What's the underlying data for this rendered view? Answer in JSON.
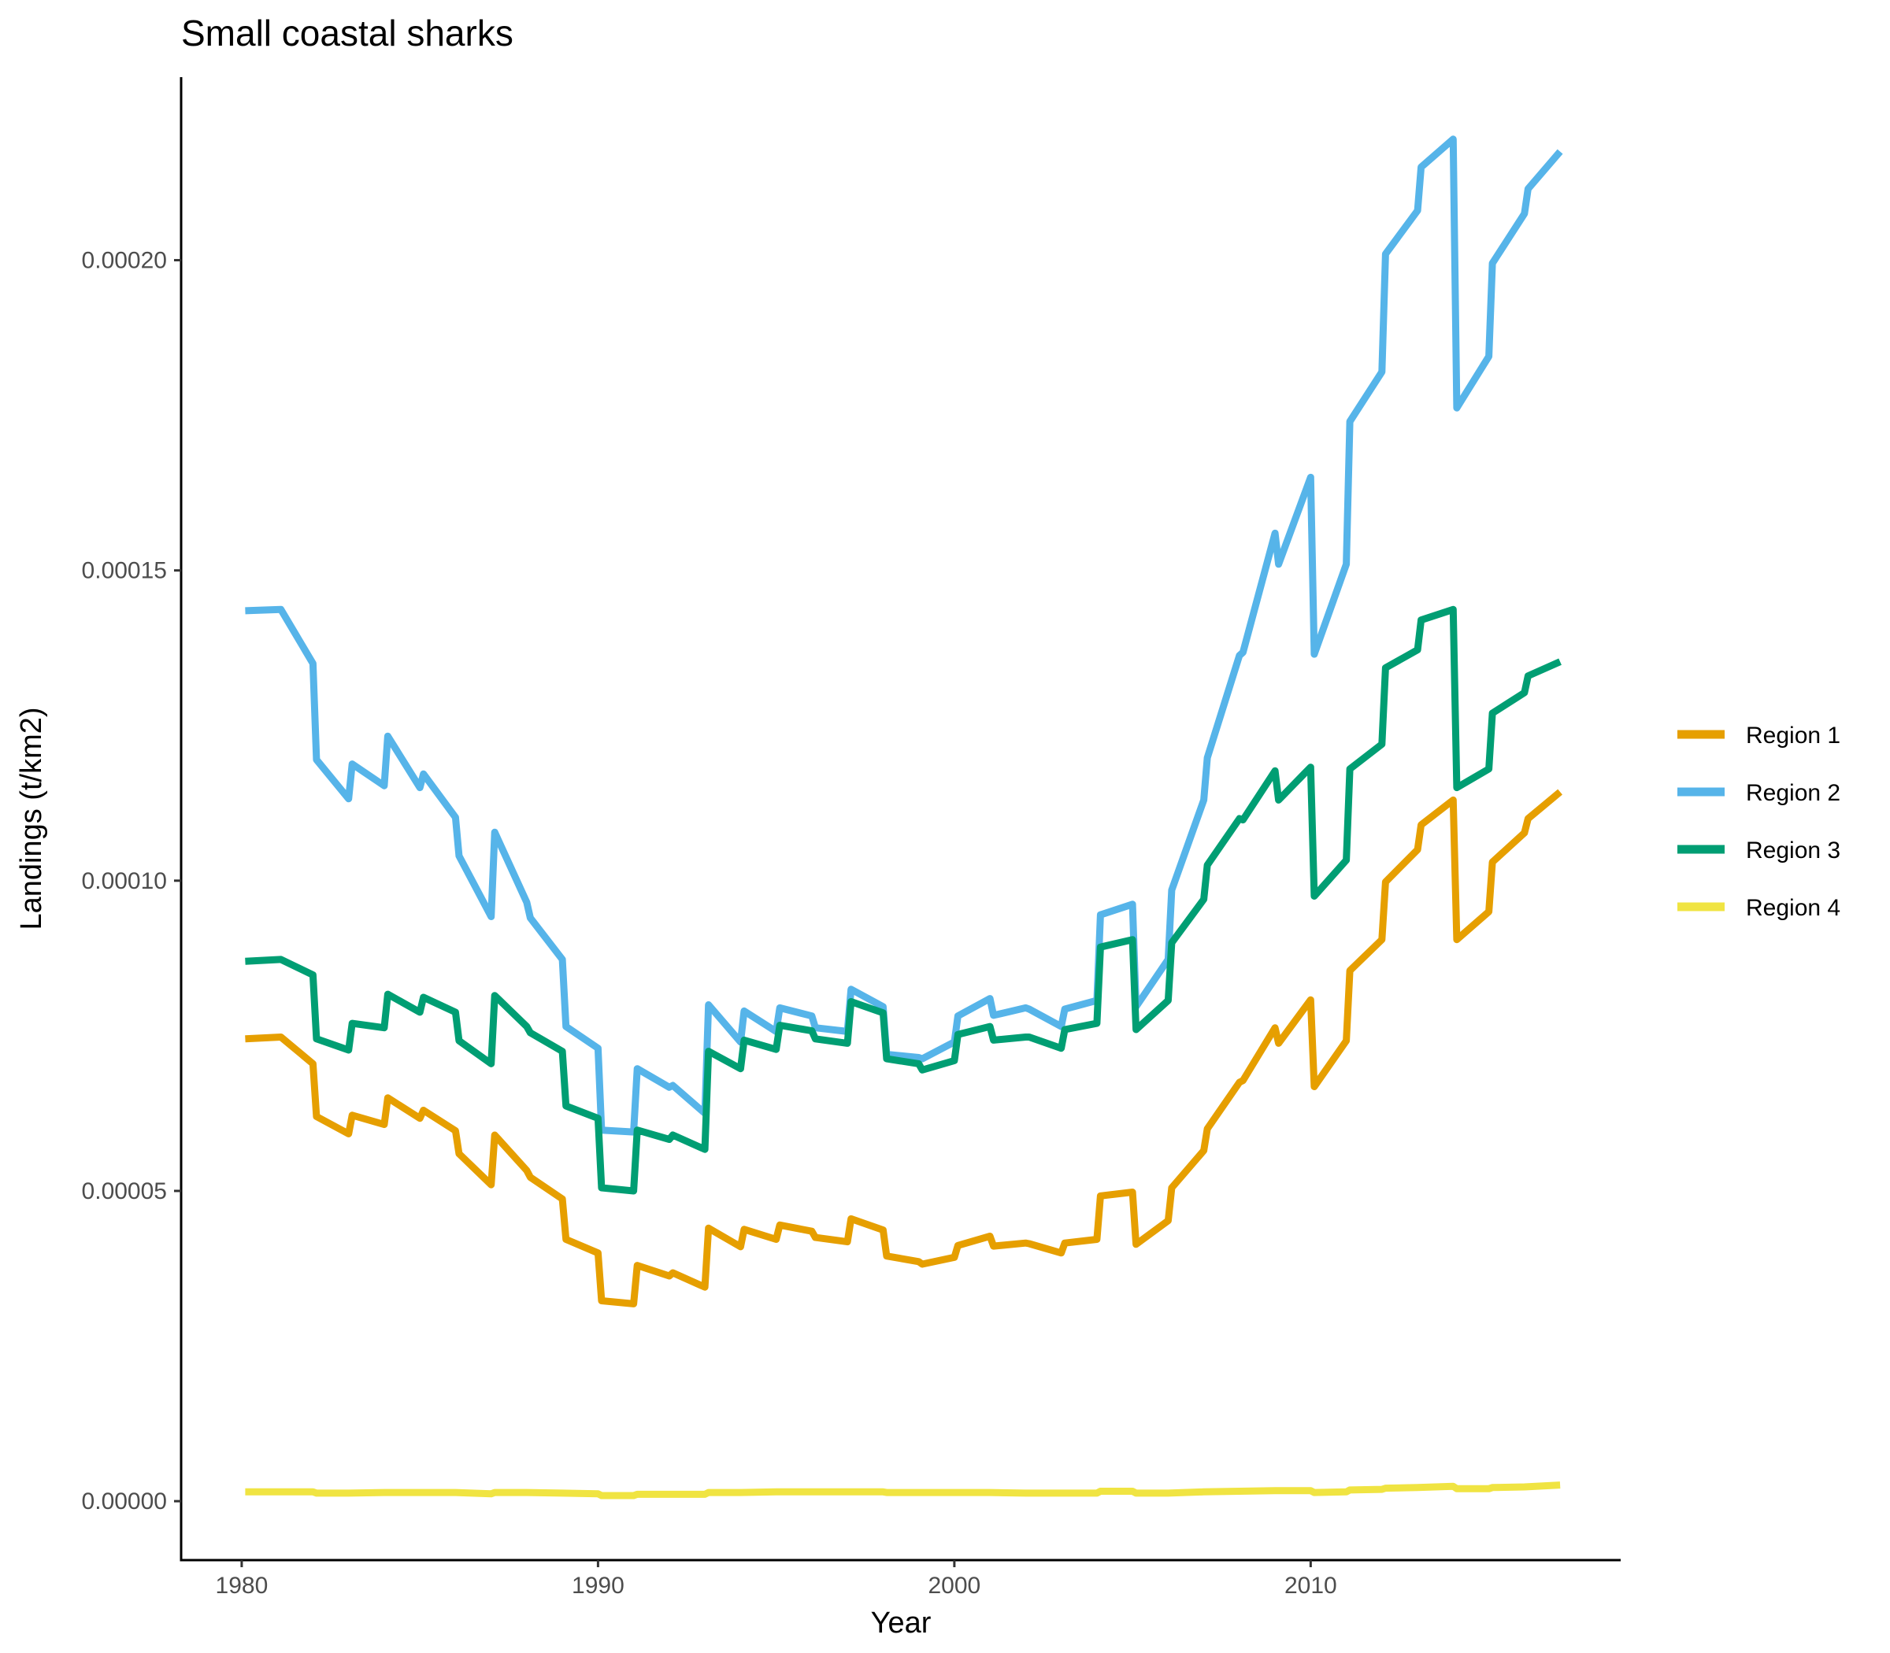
{
  "chart_data": {
    "type": "line",
    "title": "Small coastal sharks",
    "xlabel": "Year",
    "ylabel": "Landings (t/km2)",
    "xlim": [
      1978.3,
      2018.7
    ],
    "ylim": [
      -9.5e-06,
      0.0002295
    ],
    "x_ticks": [
      1980,
      1990,
      2000,
      2010
    ],
    "x_tick_labels": [
      "1980",
      "1990",
      "2000",
      "2010"
    ],
    "y_ticks": [
      0,
      5e-05,
      0.0001,
      0.00015,
      0.0002
    ],
    "y_tick_labels": [
      "0.00000",
      "0.00005",
      "0.00010",
      "0.00015",
      "0.00020"
    ],
    "grid": false,
    "legend_position": "right",
    "series": [
      {
        "name": "Region 1",
        "color": "#E69F00",
        "points": [
          [
            1980.1,
            7.45e-05
          ],
          [
            1981.1,
            7.48e-05
          ],
          [
            1982.0,
            7.05e-05
          ],
          [
            1982.1,
            6.2e-05
          ],
          [
            1983.0,
            5.92e-05
          ],
          [
            1983.1,
            6.22e-05
          ],
          [
            1984.0,
            6.07e-05
          ],
          [
            1984.1,
            6.5e-05
          ],
          [
            1985.0,
            6.17e-05
          ],
          [
            1985.1,
            6.3e-05
          ],
          [
            1986.0,
            5.97e-05
          ],
          [
            1986.1,
            5.6e-05
          ],
          [
            1987.0,
            5.1e-05
          ],
          [
            1987.1,
            5.9e-05
          ],
          [
            1988.0,
            5.33e-05
          ],
          [
            1988.1,
            5.22e-05
          ],
          [
            1989.0,
            4.87e-05
          ],
          [
            1989.1,
            4.22e-05
          ],
          [
            1990.0,
            4e-05
          ],
          [
            1990.1,
            3.23e-05
          ],
          [
            1991.0,
            3.18e-05
          ],
          [
            1991.1,
            3.8e-05
          ],
          [
            1992.0,
            3.63e-05
          ],
          [
            1992.1,
            3.68e-05
          ],
          [
            1993.0,
            3.45e-05
          ],
          [
            1993.1,
            4.4e-05
          ],
          [
            1994.0,
            4.1e-05
          ],
          [
            1994.1,
            4.38e-05
          ],
          [
            1995.0,
            4.22e-05
          ],
          [
            1995.1,
            4.45e-05
          ],
          [
            1996.0,
            4.35e-05
          ],
          [
            1996.1,
            4.25e-05
          ],
          [
            1997.0,
            4.18e-05
          ],
          [
            1997.1,
            4.55e-05
          ],
          [
            1998.0,
            4.37e-05
          ],
          [
            1998.1,
            3.95e-05
          ],
          [
            1999.0,
            3.86e-05
          ],
          [
            1999.1,
            3.82e-05
          ],
          [
            2000.0,
            3.93e-05
          ],
          [
            2000.1,
            4.12e-05
          ],
          [
            2001.0,
            4.27e-05
          ],
          [
            2001.1,
            4.11e-05
          ],
          [
            2002.0,
            4.16e-05
          ],
          [
            2002.1,
            4.15e-05
          ],
          [
            2003.0,
            4e-05
          ],
          [
            2003.1,
            4.16e-05
          ],
          [
            2004.0,
            4.22e-05
          ],
          [
            2004.1,
            4.92e-05
          ],
          [
            2005.0,
            4.98e-05
          ],
          [
            2005.1,
            4.14e-05
          ],
          [
            2006.0,
            4.52e-05
          ],
          [
            2006.1,
            5.05e-05
          ],
          [
            2007.0,
            5.65e-05
          ],
          [
            2007.1,
            6e-05
          ],
          [
            2008.0,
            6.75e-05
          ],
          [
            2008.1,
            6.78e-05
          ],
          [
            2009.0,
            7.63e-05
          ],
          [
            2009.1,
            7.38e-05
          ],
          [
            2010.0,
            8.08e-05
          ],
          [
            2010.1,
            6.68e-05
          ],
          [
            2011.0,
            7.42e-05
          ],
          [
            2011.1,
            8.55e-05
          ],
          [
            2012.0,
            9.05e-05
          ],
          [
            2012.1,
            9.98e-05
          ],
          [
            2013.0,
            0.000105
          ],
          [
            2013.1,
            0.000109
          ],
          [
            2014.0,
            0.000113
          ],
          [
            2014.1,
            9.05e-05
          ],
          [
            2015.0,
            9.5e-05
          ],
          [
            2015.1,
            0.000103
          ],
          [
            2016.0,
            0.0001077
          ],
          [
            2016.1,
            0.00011
          ],
          [
            2017.0,
            0.0001143
          ]
        ]
      },
      {
        "name": "Region 2",
        "color": "#56B4E9",
        "points": [
          [
            1980.1,
            0.0001435
          ],
          [
            1981.1,
            0.0001437
          ],
          [
            1982.0,
            0.000135
          ],
          [
            1982.1,
            0.0001195
          ],
          [
            1983.0,
            0.0001132
          ],
          [
            1983.1,
            0.0001188
          ],
          [
            1984.0,
            0.0001153
          ],
          [
            1984.1,
            0.0001233
          ],
          [
            1985.0,
            0.000115
          ],
          [
            1985.1,
            0.0001172
          ],
          [
            1986.0,
            0.0001102
          ],
          [
            1986.1,
            0.000104
          ],
          [
            1987.0,
            9.42e-05
          ],
          [
            1987.1,
            0.0001078
          ],
          [
            1988.0,
            9.65e-05
          ],
          [
            1988.1,
            9.4e-05
          ],
          [
            1989.0,
            8.73e-05
          ],
          [
            1989.1,
            7.65e-05
          ],
          [
            1990.0,
            7.3e-05
          ],
          [
            1990.1,
            5.98e-05
          ],
          [
            1991.0,
            5.95e-05
          ],
          [
            1991.1,
            6.97e-05
          ],
          [
            1992.0,
            6.67e-05
          ],
          [
            1992.1,
            6.7e-05
          ],
          [
            1993.0,
            6.25e-05
          ],
          [
            1993.1,
            8e-05
          ],
          [
            1994.0,
            7.4e-05
          ],
          [
            1994.1,
            7.9e-05
          ],
          [
            1995.0,
            7.57e-05
          ],
          [
            1995.1,
            7.95e-05
          ],
          [
            1996.0,
            7.82e-05
          ],
          [
            1996.1,
            7.63e-05
          ],
          [
            1997.0,
            7.57e-05
          ],
          [
            1997.1,
            8.25e-05
          ],
          [
            1998.0,
            7.97e-05
          ],
          [
            1998.1,
            7.2e-05
          ],
          [
            1999.0,
            7.15e-05
          ],
          [
            1999.1,
            7.13e-05
          ],
          [
            2000.0,
            7.4e-05
          ],
          [
            2000.1,
            7.82e-05
          ],
          [
            2001.0,
            8.1e-05
          ],
          [
            2001.1,
            7.83e-05
          ],
          [
            2002.0,
            7.95e-05
          ],
          [
            2002.1,
            7.93e-05
          ],
          [
            2003.0,
            7.65e-05
          ],
          [
            2003.1,
            7.93e-05
          ],
          [
            2004.0,
            8.07e-05
          ],
          [
            2004.1,
            9.45e-05
          ],
          [
            2005.0,
            9.62e-05
          ],
          [
            2005.1,
            7.97e-05
          ],
          [
            2006.0,
            8.73e-05
          ],
          [
            2006.1,
            9.85e-05
          ],
          [
            2007.0,
            0.000113
          ],
          [
            2007.1,
            0.0001198
          ],
          [
            2008.0,
            0.0001363
          ],
          [
            2008.1,
            0.0001368
          ],
          [
            2009.0,
            0.000156
          ],
          [
            2009.1,
            0.000151
          ],
          [
            2010.0,
            0.000165
          ],
          [
            2010.1,
            0.0001365
          ],
          [
            2011.0,
            0.000151
          ],
          [
            2011.1,
            0.000174
          ],
          [
            2012.0,
            0.000182
          ],
          [
            2012.1,
            0.000201
          ],
          [
            2013.0,
            0.000208
          ],
          [
            2013.1,
            0.000215
          ],
          [
            2014.0,
            0.0002195
          ],
          [
            2014.1,
            0.0001762
          ],
          [
            2015.0,
            0.0001845
          ],
          [
            2015.1,
            0.0001995
          ],
          [
            2016.0,
            0.0002075
          ],
          [
            2016.1,
            0.0002115
          ],
          [
            2017.0,
            0.0002175
          ]
        ]
      },
      {
        "name": "Region 3",
        "color": "#009E73",
        "points": [
          [
            1980.1,
            8.7e-05
          ],
          [
            1981.1,
            8.73e-05
          ],
          [
            1982.0,
            8.48e-05
          ],
          [
            1982.1,
            7.45e-05
          ],
          [
            1983.0,
            7.27e-05
          ],
          [
            1983.1,
            7.7e-05
          ],
          [
            1984.0,
            7.63e-05
          ],
          [
            1984.1,
            8.17e-05
          ],
          [
            1985.0,
            7.88e-05
          ],
          [
            1985.1,
            8.12e-05
          ],
          [
            1986.0,
            7.88e-05
          ],
          [
            1986.1,
            7.42e-05
          ],
          [
            1987.0,
            7.05e-05
          ],
          [
            1987.1,
            8.15e-05
          ],
          [
            1988.0,
            7.65e-05
          ],
          [
            1988.1,
            7.55e-05
          ],
          [
            1989.0,
            7.25e-05
          ],
          [
            1989.1,
            6.37e-05
          ],
          [
            1990.0,
            6.17e-05
          ],
          [
            1990.1,
            5.05e-05
          ],
          [
            1991.0,
            5e-05
          ],
          [
            1991.1,
            5.98e-05
          ],
          [
            1992.0,
            5.83e-05
          ],
          [
            1992.1,
            5.9e-05
          ],
          [
            1993.0,
            5.67e-05
          ],
          [
            1993.1,
            7.25e-05
          ],
          [
            1994.0,
            6.97e-05
          ],
          [
            1994.1,
            7.43e-05
          ],
          [
            1995.0,
            7.28e-05
          ],
          [
            1995.1,
            7.67e-05
          ],
          [
            1996.0,
            7.58e-05
          ],
          [
            1996.1,
            7.45e-05
          ],
          [
            1997.0,
            7.38e-05
          ],
          [
            1997.1,
            8.05e-05
          ],
          [
            1998.0,
            7.87e-05
          ],
          [
            1998.1,
            7.13e-05
          ],
          [
            1999.0,
            7.05e-05
          ],
          [
            1999.1,
            6.95e-05
          ],
          [
            2000.0,
            7.1e-05
          ],
          [
            2000.1,
            7.52e-05
          ],
          [
            2001.0,
            7.65e-05
          ],
          [
            2001.1,
            7.43e-05
          ],
          [
            2002.0,
            7.48e-05
          ],
          [
            2002.1,
            7.48e-05
          ],
          [
            2003.0,
            7.3e-05
          ],
          [
            2003.1,
            7.6e-05
          ],
          [
            2004.0,
            7.7e-05
          ],
          [
            2004.1,
            8.93e-05
          ],
          [
            2005.0,
            9.05e-05
          ],
          [
            2005.1,
            7.6e-05
          ],
          [
            2006.0,
            8.07e-05
          ],
          [
            2006.1,
            9e-05
          ],
          [
            2007.0,
            9.7e-05
          ],
          [
            2007.1,
            0.0001025
          ],
          [
            2008.0,
            0.00011
          ],
          [
            2008.1,
            0.0001098
          ],
          [
            2009.0,
            0.0001177
          ],
          [
            2009.1,
            0.000113
          ],
          [
            2010.0,
            0.0001183
          ],
          [
            2010.1,
            9.75e-05
          ],
          [
            2011.0,
            0.0001033
          ],
          [
            2011.1,
            0.000118
          ],
          [
            2012.0,
            0.000122
          ],
          [
            2012.1,
            0.0001343
          ],
          [
            2013.0,
            0.0001372
          ],
          [
            2013.1,
            0.000142
          ],
          [
            2014.0,
            0.0001437
          ],
          [
            2014.1,
            0.000115
          ],
          [
            2015.0,
            0.000118
          ],
          [
            2015.1,
            0.000127
          ],
          [
            2016.0,
            0.0001303
          ],
          [
            2016.1,
            0.000133
          ],
          [
            2017.0,
            0.0001353
          ]
        ]
      },
      {
        "name": "Region 4",
        "color": "#F0E442",
        "points": [
          [
            1980.1,
            1.5e-06
          ],
          [
            1981.1,
            1.5e-06
          ],
          [
            1982.0,
            1.5e-06
          ],
          [
            1982.1,
            1.3e-06
          ],
          [
            1983.0,
            1.3e-06
          ],
          [
            1984.0,
            1.4e-06
          ],
          [
            1985.0,
            1.4e-06
          ],
          [
            1986.0,
            1.4e-06
          ],
          [
            1987.0,
            1.2e-06
          ],
          [
            1987.1,
            1.4e-06
          ],
          [
            1988.0,
            1.4e-06
          ],
          [
            1989.0,
            1.3e-06
          ],
          [
            1990.0,
            1.2e-06
          ],
          [
            1990.1,
            9e-07
          ],
          [
            1991.0,
            9e-07
          ],
          [
            1991.1,
            1.1e-06
          ],
          [
            1992.0,
            1.1e-06
          ],
          [
            1993.0,
            1.1e-06
          ],
          [
            1993.1,
            1.4e-06
          ],
          [
            1994.0,
            1.4e-06
          ],
          [
            1995.0,
            1.5e-06
          ],
          [
            1996.0,
            1.5e-06
          ],
          [
            1997.0,
            1.5e-06
          ],
          [
            1998.0,
            1.5e-06
          ],
          [
            1998.1,
            1.4e-06
          ],
          [
            1999.0,
            1.4e-06
          ],
          [
            2000.0,
            1.4e-06
          ],
          [
            2001.0,
            1.4e-06
          ],
          [
            2002.0,
            1.3e-06
          ],
          [
            2003.0,
            1.3e-06
          ],
          [
            2004.0,
            1.3e-06
          ],
          [
            2004.1,
            1.6e-06
          ],
          [
            2005.0,
            1.6e-06
          ],
          [
            2005.1,
            1.3e-06
          ],
          [
            2006.0,
            1.3e-06
          ],
          [
            2007.0,
            1.5e-06
          ],
          [
            2008.0,
            1.6e-06
          ],
          [
            2009.0,
            1.7e-06
          ],
          [
            2010.0,
            1.7e-06
          ],
          [
            2010.1,
            1.4e-06
          ],
          [
            2011.0,
            1.5e-06
          ],
          [
            2011.1,
            1.8e-06
          ],
          [
            2012.0,
            1.9e-06
          ],
          [
            2012.1,
            2.1e-06
          ],
          [
            2013.0,
            2.2e-06
          ],
          [
            2014.0,
            2.4e-06
          ],
          [
            2014.1,
            2e-06
          ],
          [
            2015.0,
            2e-06
          ],
          [
            2015.1,
            2.2e-06
          ],
          [
            2016.0,
            2.3e-06
          ],
          [
            2017.0,
            2.6e-06
          ]
        ]
      }
    ]
  }
}
